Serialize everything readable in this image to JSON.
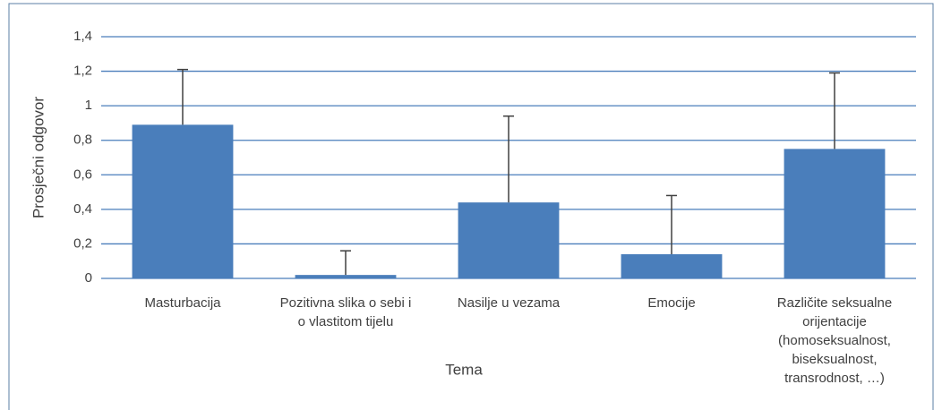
{
  "chart_data": {
    "type": "bar",
    "x_label": "Tema",
    "y_label": "Prosječni odgovor",
    "categories": [
      "Masturbacija",
      "Pozitivna slika o sebi i o vlastitom tijelu",
      "Nasilje u vezama",
      "Emocije",
      "Različite seksualne orijentacije (homoseksualnost, biseksualnost, transrodnost, …)"
    ],
    "values": [
      0.89,
      0.02,
      0.44,
      0.14,
      0.75
    ],
    "errors": [
      0.32,
      0.14,
      0.5,
      0.34,
      0.44
    ],
    "color": "#4a7ebb",
    "error_color": "#404040",
    "ylim": [
      0,
      1.4
    ],
    "yticks": [
      0,
      {
        "value": 0.2,
        "label": "0,2"
      },
      {
        "value": 0.4,
        "label": "0,4"
      },
      {
        "value": 0.6,
        "label": "0,6"
      },
      {
        "value": 0.8,
        "label": "0,8"
      },
      1,
      {
        "value": 1.2,
        "label": "1,2"
      },
      {
        "value": 1.4,
        "label": "1,4"
      }
    ],
    "grid": true
  }
}
